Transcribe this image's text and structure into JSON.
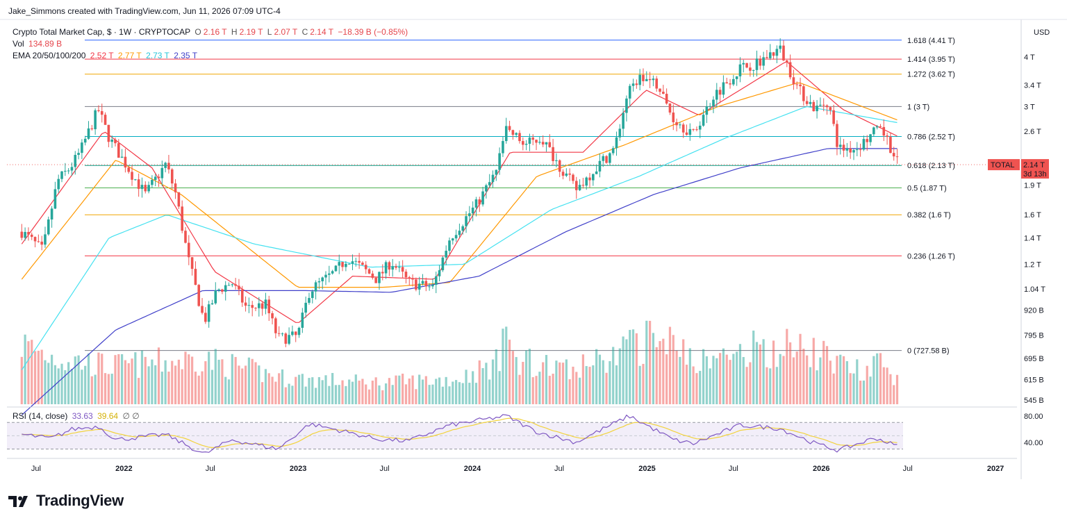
{
  "header": {
    "credit": "Jake_Simmons created with TradingView.com, Jun 11, 2026 07:09 UTC-4",
    "symbol_line": "Crypto Total Market Cap, $ · 1W · CRYPTOCAP",
    "ohlc": {
      "o_label": "O",
      "o": "2.16 T",
      "h_label": "H",
      "h": "2.19 T",
      "l_label": "L",
      "l": "2.07 T",
      "c_label": "C",
      "c": "2.14 T",
      "change": "−18.39 B (−0.85%)"
    },
    "vol_label": "Vol",
    "vol": "134.89 B",
    "ema_label": "EMA 20/50/100/200",
    "ema_values": [
      "2.52 T",
      "2.77 T",
      "2.73 T",
      "2.35 T"
    ]
  },
  "colors": {
    "up": "#26a69a",
    "down": "#ef5350",
    "ema20": "#f23645",
    "ema50": "#ff9800",
    "ema100": "#43e1f0",
    "ema200": "#3f3fc9",
    "rsi": "#7e57c2",
    "rsi_ma": "#f2d33b"
  },
  "chart_data": {
    "type": "candlestick",
    "currency_axis_label": "USD",
    "y_scale": "log",
    "y_ticks": [
      "4 T",
      "3.4 T",
      "3 T",
      "2.6 T",
      "1.9 T",
      "1.6 T",
      "1.4 T",
      "1.2 T",
      "1.04 T",
      "920 B",
      "795 B",
      "695 B",
      "615 B",
      "545 B"
    ],
    "x_ticks": [
      "Jul",
      "2022",
      "Jul",
      "2023",
      "Jul",
      "2024",
      "Jul",
      "2025",
      "Jul",
      "2026",
      "Jul",
      "2027"
    ],
    "price_tag": {
      "label": "TOTAL",
      "value": "2.14 T",
      "countdown": "3d 13h"
    },
    "fib_levels": [
      {
        "label": "1.618 (4.41 T)",
        "value": 4.41,
        "color": "#2962ff"
      },
      {
        "label": "1.414 (3.95 T)",
        "value": 3.95,
        "color": "#f23645"
      },
      {
        "label": "1.272 (3.62 T)",
        "value": 3.62,
        "color": "#f0a500"
      },
      {
        "label": "1 (3 T)",
        "value": 3.0,
        "color": "#787b86"
      },
      {
        "label": "0.786 (2.52 T)",
        "value": 2.52,
        "color": "#00acc1"
      },
      {
        "label": "0.618 (2.13 T)",
        "value": 2.13,
        "color": "#089981"
      },
      {
        "label": "0.5 (1.87 T)",
        "value": 1.87,
        "color": "#4caf50"
      },
      {
        "label": "0.382 (1.6 T)",
        "value": 1.6,
        "color": "#f0a500"
      },
      {
        "label": "0.236 (1.26 T)",
        "value": 1.26,
        "color": "#f23645"
      },
      {
        "label": "0 (727.58 B)",
        "value": 0.72758,
        "color": "#787b86"
      }
    ],
    "price_path": [
      [
        "2021-06-01",
        1.45
      ],
      [
        "2021-07-15",
        1.3
      ],
      [
        "2021-08-15",
        1.95
      ],
      [
        "2021-09-10",
        2.1
      ],
      [
        "2021-10-01",
        2.3
      ],
      [
        "2021-11-08",
        2.95
      ],
      [
        "2021-12-01",
        2.5
      ],
      [
        "2022-01-15",
        2.05
      ],
      [
        "2022-02-15",
        1.8
      ],
      [
        "2022-03-30",
        2.15
      ],
      [
        "2022-04-20",
        1.8
      ],
      [
        "2022-05-15",
        1.25
      ],
      [
        "2022-06-18",
        0.86
      ],
      [
        "2022-07-15",
        1.03
      ],
      [
        "2022-08-15",
        1.08
      ],
      [
        "2022-09-15",
        0.93
      ],
      [
        "2022-10-25",
        0.95
      ],
      [
        "2022-11-20",
        0.78
      ],
      [
        "2022-12-31",
        0.79
      ],
      [
        "2023-01-25",
        1.03
      ],
      [
        "2023-03-20",
        1.15
      ],
      [
        "2023-04-15",
        1.25
      ],
      [
        "2023-06-15",
        1.1
      ],
      [
        "2023-07-15",
        1.22
      ],
      [
        "2023-08-20",
        1.08
      ],
      [
        "2023-10-10",
        1.05
      ],
      [
        "2023-11-15",
        1.4
      ],
      [
        "2024-01-10",
        1.7
      ],
      [
        "2024-02-20",
        2.05
      ],
      [
        "2024-03-12",
        2.65
      ],
      [
        "2024-04-20",
        2.4
      ],
      [
        "2024-05-25",
        2.5
      ],
      [
        "2024-07-05",
        2.1
      ],
      [
        "2024-08-05",
        1.85
      ],
      [
        "2024-09-15",
        2.1
      ],
      [
        "2024-10-25",
        2.35
      ],
      [
        "2024-11-20",
        3.2
      ],
      [
        "2024-12-15",
        3.55
      ],
      [
        "2025-01-20",
        3.45
      ],
      [
        "2025-02-25",
        2.8
      ],
      [
        "2025-04-08",
        2.55
      ],
      [
        "2025-05-20",
        3.2
      ],
      [
        "2025-07-15",
        3.75
      ],
      [
        "2025-08-15",
        3.85
      ],
      [
        "2025-10-06",
        4.2
      ],
      [
        "2025-11-15",
        3.3
      ],
      [
        "2025-12-20",
        2.95
      ],
      [
        "2026-01-15",
        3.1
      ],
      [
        "2026-02-06",
        2.35
      ],
      [
        "2026-03-15",
        2.35
      ],
      [
        "2026-04-25",
        2.6
      ],
      [
        "2026-05-15",
        2.55
      ],
      [
        "2026-06-11",
        2.14
      ]
    ],
    "ema_paths": {
      "ema20": [
        [
          "2021-06-01",
          1.35
        ],
        [
          "2021-11-20",
          2.6
        ],
        [
          "2022-03-01",
          2.1
        ],
        [
          "2022-07-10",
          1.15
        ],
        [
          "2022-12-31",
          0.85
        ],
        [
          "2023-04-25",
          1.12
        ],
        [
          "2023-10-15",
          1.1
        ],
        [
          "2024-03-20",
          2.3
        ],
        [
          "2024-08-20",
          2.3
        ],
        [
          "2024-12-30",
          3.3
        ],
        [
          "2025-04-20",
          2.85
        ],
        [
          "2025-10-20",
          3.9
        ],
        [
          "2026-02-15",
          2.95
        ],
        [
          "2026-06-11",
          2.52
        ]
      ],
      "ema50": [
        [
          "2021-06-01",
          1.1
        ],
        [
          "2021-12-15",
          2.2
        ],
        [
          "2022-05-01",
          1.8
        ],
        [
          "2022-12-31",
          1.05
        ],
        [
          "2023-06-30",
          1.05
        ],
        [
          "2023-11-15",
          1.08
        ],
        [
          "2024-05-15",
          2.0
        ],
        [
          "2024-11-15",
          2.4
        ],
        [
          "2025-05-30",
          3.0
        ],
        [
          "2025-11-15",
          3.45
        ],
        [
          "2026-06-11",
          2.77
        ]
      ],
      "ema100": [
        [
          "2021-06-01",
          0.65
        ],
        [
          "2021-12-01",
          1.4
        ],
        [
          "2022-04-01",
          1.6
        ],
        [
          "2022-10-01",
          1.35
        ],
        [
          "2023-06-01",
          1.18
        ],
        [
          "2023-12-15",
          1.2
        ],
        [
          "2024-06-15",
          1.65
        ],
        [
          "2024-12-15",
          2.0
        ],
        [
          "2025-06-15",
          2.5
        ],
        [
          "2025-12-01",
          3.0
        ],
        [
          "2026-06-11",
          2.73
        ]
      ],
      "ema200": [
        [
          "2021-06-01",
          0.5
        ],
        [
          "2021-12-15",
          0.82
        ],
        [
          "2022-06-15",
          1.03
        ],
        [
          "2023-01-15",
          1.03
        ],
        [
          "2023-07-15",
          1.02
        ],
        [
          "2024-01-15",
          1.12
        ],
        [
          "2024-07-15",
          1.45
        ],
        [
          "2025-01-15",
          1.8
        ],
        [
          "2025-07-15",
          2.1
        ],
        [
          "2026-01-15",
          2.35
        ],
        [
          "2026-06-11",
          2.35
        ]
      ]
    },
    "volume": {
      "series_label": "Vol",
      "path": [
        [
          "2021-06-01",
          480
        ],
        [
          "2021-08-01",
          380
        ],
        [
          "2021-12-01",
          300
        ],
        [
          "2022-06-15",
          360
        ],
        [
          "2022-12-01",
          210
        ],
        [
          "2023-06-01",
          170
        ],
        [
          "2023-12-01",
          200
        ],
        [
          "2024-03-15",
          360
        ],
        [
          "2024-08-01",
          260
        ],
        [
          "2024-12-01",
          460
        ],
        [
          "2025-02-15",
          560
        ],
        [
          "2025-05-01",
          330
        ],
        [
          "2025-08-15",
          440
        ],
        [
          "2025-11-01",
          460
        ],
        [
          "2026-02-15",
          330
        ],
        [
          "2026-06-11",
          230
        ]
      ],
      "highlights": [
        [
          "2024-03-10",
          500
        ],
        [
          "2025-01-10",
          560
        ],
        [
          "2025-08-20",
          450
        ],
        [
          "2026-04-25",
          400
        ]
      ]
    },
    "rsi": {
      "label": "RSI (14, close)",
      "value": "33.63",
      "ma": "39.64",
      "flags": "∅ ∅",
      "levels": [
        "80.00",
        "40.00"
      ],
      "upper": 70,
      "lower": 30,
      "range": [
        20,
        85
      ],
      "path": [
        [
          "2021-06-01",
          52
        ],
        [
          "2021-08-01",
          46
        ],
        [
          "2021-09-15",
          60
        ],
        [
          "2021-11-10",
          64
        ],
        [
          "2021-12-15",
          44
        ],
        [
          "2022-03-30",
          52
        ],
        [
          "2022-06-18",
          22
        ],
        [
          "2022-08-15",
          44
        ],
        [
          "2022-11-20",
          30
        ],
        [
          "2023-01-25",
          68
        ],
        [
          "2023-03-30",
          58
        ],
        [
          "2023-06-15",
          45
        ],
        [
          "2023-08-20",
          42
        ],
        [
          "2023-11-15",
          66
        ],
        [
          "2024-03-12",
          80
        ],
        [
          "2024-05-15",
          56
        ],
        [
          "2024-08-05",
          40
        ],
        [
          "2024-11-25",
          80
        ],
        [
          "2025-02-25",
          44
        ],
        [
          "2025-04-08",
          38
        ],
        [
          "2025-07-15",
          66
        ],
        [
          "2025-10-06",
          61
        ],
        [
          "2025-12-20",
          38
        ],
        [
          "2026-02-06",
          28
        ],
        [
          "2026-04-25",
          47
        ],
        [
          "2026-06-11",
          33.63
        ]
      ]
    }
  }
}
